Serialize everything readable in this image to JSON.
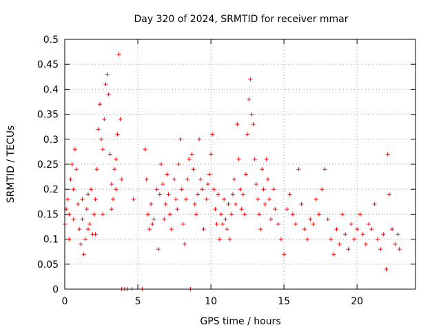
{
  "chart_data": {
    "type": "scatter",
    "title": "Day 320 of 2024, SRMTID for receiver mmar",
    "xlabel": "GPS time / hours",
    "ylabel": "SRMTID / TECUs",
    "xlim": [
      0,
      24
    ],
    "ylim": [
      0,
      0.5
    ],
    "xticks": [
      0,
      5,
      10,
      15,
      20
    ],
    "yticks": [
      0,
      0.05,
      0.1,
      0.15,
      0.2,
      0.25,
      0.3,
      0.35,
      0.4,
      0.45,
      0.5
    ],
    "xtick_labels": [
      "0",
      "5",
      "10",
      "15",
      "20"
    ],
    "ytick_labels": [
      "0",
      "0.05",
      "0.1",
      "0.15",
      "0.2",
      "0.25",
      "0.3",
      "0.35",
      "0.4",
      "0.45",
      "0.5"
    ],
    "grid": true,
    "marker": "+",
    "color": "#ff0000",
    "series": [
      {
        "name": "SRMTID",
        "points": [
          [
            0.0,
            0.13
          ],
          [
            0.1,
            0.16
          ],
          [
            0.2,
            0.18
          ],
          [
            0.3,
            0.15
          ],
          [
            0.4,
            0.22
          ],
          [
            0.5,
            0.25
          ],
          [
            0.6,
            0.2
          ],
          [
            0.7,
            0.28
          ],
          [
            0.8,
            0.24
          ],
          [
            0.9,
            0.17
          ],
          [
            1.0,
            0.12
          ],
          [
            1.1,
            0.09
          ],
          [
            1.2,
            0.14
          ],
          [
            1.3,
            0.07
          ],
          [
            1.4,
            0.1
          ],
          [
            1.5,
            0.16
          ],
          [
            1.6,
            0.19
          ],
          [
            1.7,
            0.13
          ],
          [
            1.8,
            0.2
          ],
          [
            1.9,
            0.11
          ],
          [
            2.0,
            0.15
          ],
          [
            2.1,
            0.18
          ],
          [
            2.2,
            0.24
          ],
          [
            2.3,
            0.32
          ],
          [
            2.4,
            0.37
          ],
          [
            2.5,
            0.3
          ],
          [
            2.6,
            0.28
          ],
          [
            2.7,
            0.34
          ],
          [
            2.8,
            0.41
          ],
          [
            2.9,
            0.43
          ],
          [
            3.0,
            0.39
          ],
          [
            3.1,
            0.27
          ],
          [
            3.2,
            0.21
          ],
          [
            3.3,
            0.18
          ],
          [
            3.4,
            0.24
          ],
          [
            3.5,
            0.2
          ],
          [
            3.6,
            0.31
          ],
          [
            3.7,
            0.47
          ],
          [
            3.8,
            0.34
          ],
          [
            3.9,
            0.22
          ],
          [
            0.3,
            0.1
          ],
          [
            0.6,
            0.14
          ],
          [
            1.2,
            0.18
          ],
          [
            1.6,
            0.12
          ],
          [
            2.1,
            0.11
          ],
          [
            2.6,
            0.15
          ],
          [
            3.2,
            0.16
          ],
          [
            3.5,
            0.26
          ],
          [
            3.9,
            0.0
          ],
          [
            4.1,
            0.0
          ],
          [
            4.3,
            0.0
          ],
          [
            4.6,
            0.0
          ],
          [
            5.3,
            0.0
          ],
          [
            8.6,
            0.0
          ],
          [
            4.7,
            0.18
          ],
          [
            5.5,
            0.28
          ],
          [
            5.6,
            0.22
          ],
          [
            5.7,
            0.15
          ],
          [
            5.8,
            0.12
          ],
          [
            5.9,
            0.17
          ],
          [
            6.0,
            0.13
          ],
          [
            6.1,
            0.14
          ],
          [
            6.3,
            0.2
          ],
          [
            6.4,
            0.08
          ],
          [
            6.5,
            0.19
          ],
          [
            6.6,
            0.25
          ],
          [
            6.7,
            0.21
          ],
          [
            6.8,
            0.14
          ],
          [
            6.9,
            0.17
          ],
          [
            7.0,
            0.23
          ],
          [
            7.1,
            0.19
          ],
          [
            7.2,
            0.15
          ],
          [
            7.3,
            0.12
          ],
          [
            7.5,
            0.22
          ],
          [
            7.6,
            0.18
          ],
          [
            7.7,
            0.16
          ],
          [
            7.8,
            0.25
          ],
          [
            7.9,
            0.3
          ],
          [
            8.0,
            0.2
          ],
          [
            8.1,
            0.13
          ],
          [
            8.2,
            0.09
          ],
          [
            8.3,
            0.18
          ],
          [
            8.4,
            0.22
          ],
          [
            8.5,
            0.26
          ],
          [
            8.7,
            0.27
          ],
          [
            8.8,
            0.24
          ],
          [
            8.9,
            0.17
          ],
          [
            9.0,
            0.15
          ],
          [
            9.1,
            0.19
          ],
          [
            9.2,
            0.3
          ],
          [
            9.3,
            0.22
          ],
          [
            9.4,
            0.2
          ],
          [
            9.5,
            0.12
          ],
          [
            9.7,
            0.18
          ],
          [
            9.8,
            0.21
          ],
          [
            9.9,
            0.23
          ],
          [
            10.0,
            0.27
          ],
          [
            10.1,
            0.31
          ],
          [
            10.2,
            0.2
          ],
          [
            10.3,
            0.16
          ],
          [
            10.4,
            0.13
          ],
          [
            10.5,
            0.19
          ],
          [
            10.6,
            0.1
          ],
          [
            10.7,
            0.15
          ],
          [
            10.8,
            0.13
          ],
          [
            10.9,
            0.18
          ],
          [
            11.0,
            0.14
          ],
          [
            11.1,
            0.12
          ],
          [
            11.2,
            0.17
          ],
          [
            11.3,
            0.1
          ],
          [
            11.4,
            0.15
          ],
          [
            11.5,
            0.19
          ],
          [
            11.6,
            0.22
          ],
          [
            11.7,
            0.17
          ],
          [
            11.8,
            0.33
          ],
          [
            11.9,
            0.26
          ],
          [
            12.0,
            0.2
          ],
          [
            12.1,
            0.16
          ],
          [
            12.2,
            0.19
          ],
          [
            12.3,
            0.15
          ],
          [
            12.4,
            0.23
          ],
          [
            12.5,
            0.31
          ],
          [
            12.6,
            0.38
          ],
          [
            12.7,
            0.42
          ],
          [
            12.8,
            0.35
          ],
          [
            12.9,
            0.33
          ],
          [
            13.0,
            0.26
          ],
          [
            13.1,
            0.21
          ],
          [
            13.2,
            0.18
          ],
          [
            13.3,
            0.15
          ],
          [
            13.4,
            0.12
          ],
          [
            13.5,
            0.24
          ],
          [
            13.6,
            0.2
          ],
          [
            13.7,
            0.17
          ],
          [
            13.8,
            0.26
          ],
          [
            13.9,
            0.22
          ],
          [
            14.0,
            0.18
          ],
          [
            14.1,
            0.14
          ],
          [
            14.3,
            0.2
          ],
          [
            14.4,
            0.16
          ],
          [
            14.6,
            0.13
          ],
          [
            14.8,
            0.1
          ],
          [
            15.0,
            0.07
          ],
          [
            15.2,
            0.16
          ],
          [
            15.4,
            0.19
          ],
          [
            15.6,
            0.15
          ],
          [
            15.8,
            0.13
          ],
          [
            16.0,
            0.24
          ],
          [
            16.2,
            0.17
          ],
          [
            16.4,
            0.12
          ],
          [
            16.6,
            0.1
          ],
          [
            16.8,
            0.14
          ],
          [
            17.0,
            0.13
          ],
          [
            17.2,
            0.18
          ],
          [
            17.4,
            0.15
          ],
          [
            17.6,
            0.2
          ],
          [
            17.8,
            0.24
          ],
          [
            18.0,
            0.14
          ],
          [
            18.2,
            0.1
          ],
          [
            18.4,
            0.07
          ],
          [
            18.6,
            0.12
          ],
          [
            18.8,
            0.09
          ],
          [
            19.0,
            0.15
          ],
          [
            19.2,
            0.11
          ],
          [
            19.4,
            0.08
          ],
          [
            19.6,
            0.13
          ],
          [
            19.8,
            0.1
          ],
          [
            20.0,
            0.12
          ],
          [
            20.2,
            0.15
          ],
          [
            20.4,
            0.11
          ],
          [
            20.6,
            0.09
          ],
          [
            20.8,
            0.13
          ],
          [
            21.0,
            0.12
          ],
          [
            21.2,
            0.17
          ],
          [
            21.4,
            0.1
          ],
          [
            21.6,
            0.08
          ],
          [
            21.8,
            0.11
          ],
          [
            22.0,
            0.04
          ],
          [
            22.1,
            0.27
          ],
          [
            22.2,
            0.19
          ],
          [
            22.4,
            0.12
          ],
          [
            22.6,
            0.09
          ],
          [
            22.8,
            0.11
          ],
          [
            22.9,
            0.08
          ]
        ]
      }
    ]
  }
}
